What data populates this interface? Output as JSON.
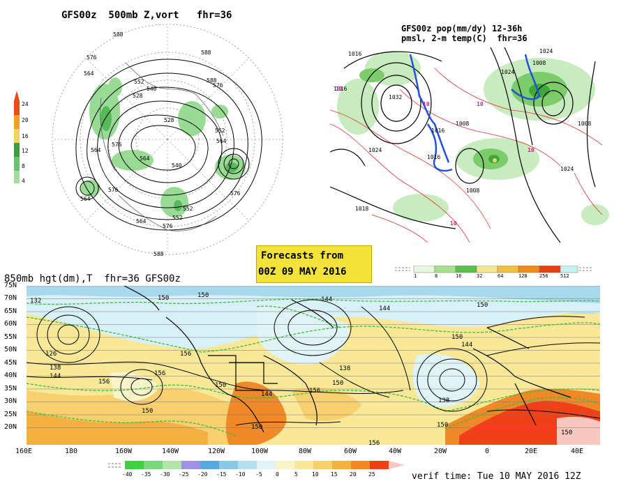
{
  "panel_500mb": {
    "title": "GFS00z  500mb Z,vort   fhr=36",
    "scale_values": [
      "24",
      "20",
      "16",
      "12",
      "8",
      "4"
    ],
    "contour_labels": [
      "588",
      "576",
      "564",
      "552",
      "540",
      "528",
      "528",
      "564",
      "576",
      "588",
      "564",
      "552",
      "540",
      "576",
      "564",
      "552",
      "576",
      "588",
      "564",
      "576",
      "552",
      "564",
      "576",
      "588"
    ]
  },
  "panel_pmsl": {
    "title_line1": "GFS00z pop(mm/dy) 12-36h",
    "title_line2": "pmsl, 2-m temp(C)  fhr=36",
    "isobar_labels": [
      "1016",
      "1024",
      "1016",
      "1032",
      "1008",
      "1024",
      "1008",
      "1016",
      "1024",
      "1008",
      "1024",
      "1016",
      "1018",
      "1008"
    ],
    "temp_labels": [
      "10",
      "10",
      "10",
      "10",
      "10"
    ],
    "pop_scale_values": [
      "1",
      "8",
      "16",
      "32",
      "64",
      "128",
      "256",
      "512"
    ]
  },
  "banner": {
    "line1": "Forecasts from",
    "line2": "00Z 09 MAY 2016"
  },
  "panel_850mb": {
    "title": "850mb hgt(dm),T  fhr=36 GFS00z",
    "lat_labels": [
      "75N",
      "70N",
      "65N",
      "60N",
      "55N",
      "50N",
      "45N",
      "40N",
      "35N",
      "30N",
      "25N",
      "20N"
    ],
    "lon_labels": [
      "160E",
      "180",
      "160W",
      "140W",
      "120W",
      "100W",
      "80W",
      "60W",
      "40W",
      "20W",
      "0",
      "20E",
      "40E"
    ],
    "height_labels": [
      "132",
      "150",
      "144",
      "144",
      "150",
      "126",
      "138",
      "144",
      "156",
      "156",
      "150",
      "150",
      "144",
      "150",
      "156",
      "156",
      "150",
      "138",
      "150",
      "150",
      "156",
      "138",
      "150",
      "144",
      "150"
    ],
    "temp_scale_values": [
      "-40",
      "-35",
      "-30",
      "-25",
      "-20",
      "-15",
      "-10",
      "-5",
      "0",
      "5",
      "10",
      "15",
      "20",
      "25"
    ],
    "verif_time": "verif time: Tue 10 MAY 2016 12Z"
  },
  "colors": {
    "vort_scale": [
      "#6cc26c",
      "#a6dca0",
      "#5fba5f",
      "#3e9e3e",
      "#f2d560",
      "#f0a020",
      "#e84a18"
    ],
    "pop_scale": [
      "#e8f8e0",
      "#a8e08a",
      "#5cc04c",
      "#f2e690",
      "#f2c040",
      "#f08a18",
      "#e84010",
      "#c6f0f0"
    ],
    "temp_scale": [
      "#40d040",
      "#78d878",
      "#b0e4a8",
      "#a090e8",
      "#58a8e0",
      "#88c8e8",
      "#b4e0f0",
      "#e0f4f8",
      "#f8f4c8",
      "#f8e898",
      "#f8d070",
      "#f4b040",
      "#f08a28",
      "#f04018"
    ]
  }
}
